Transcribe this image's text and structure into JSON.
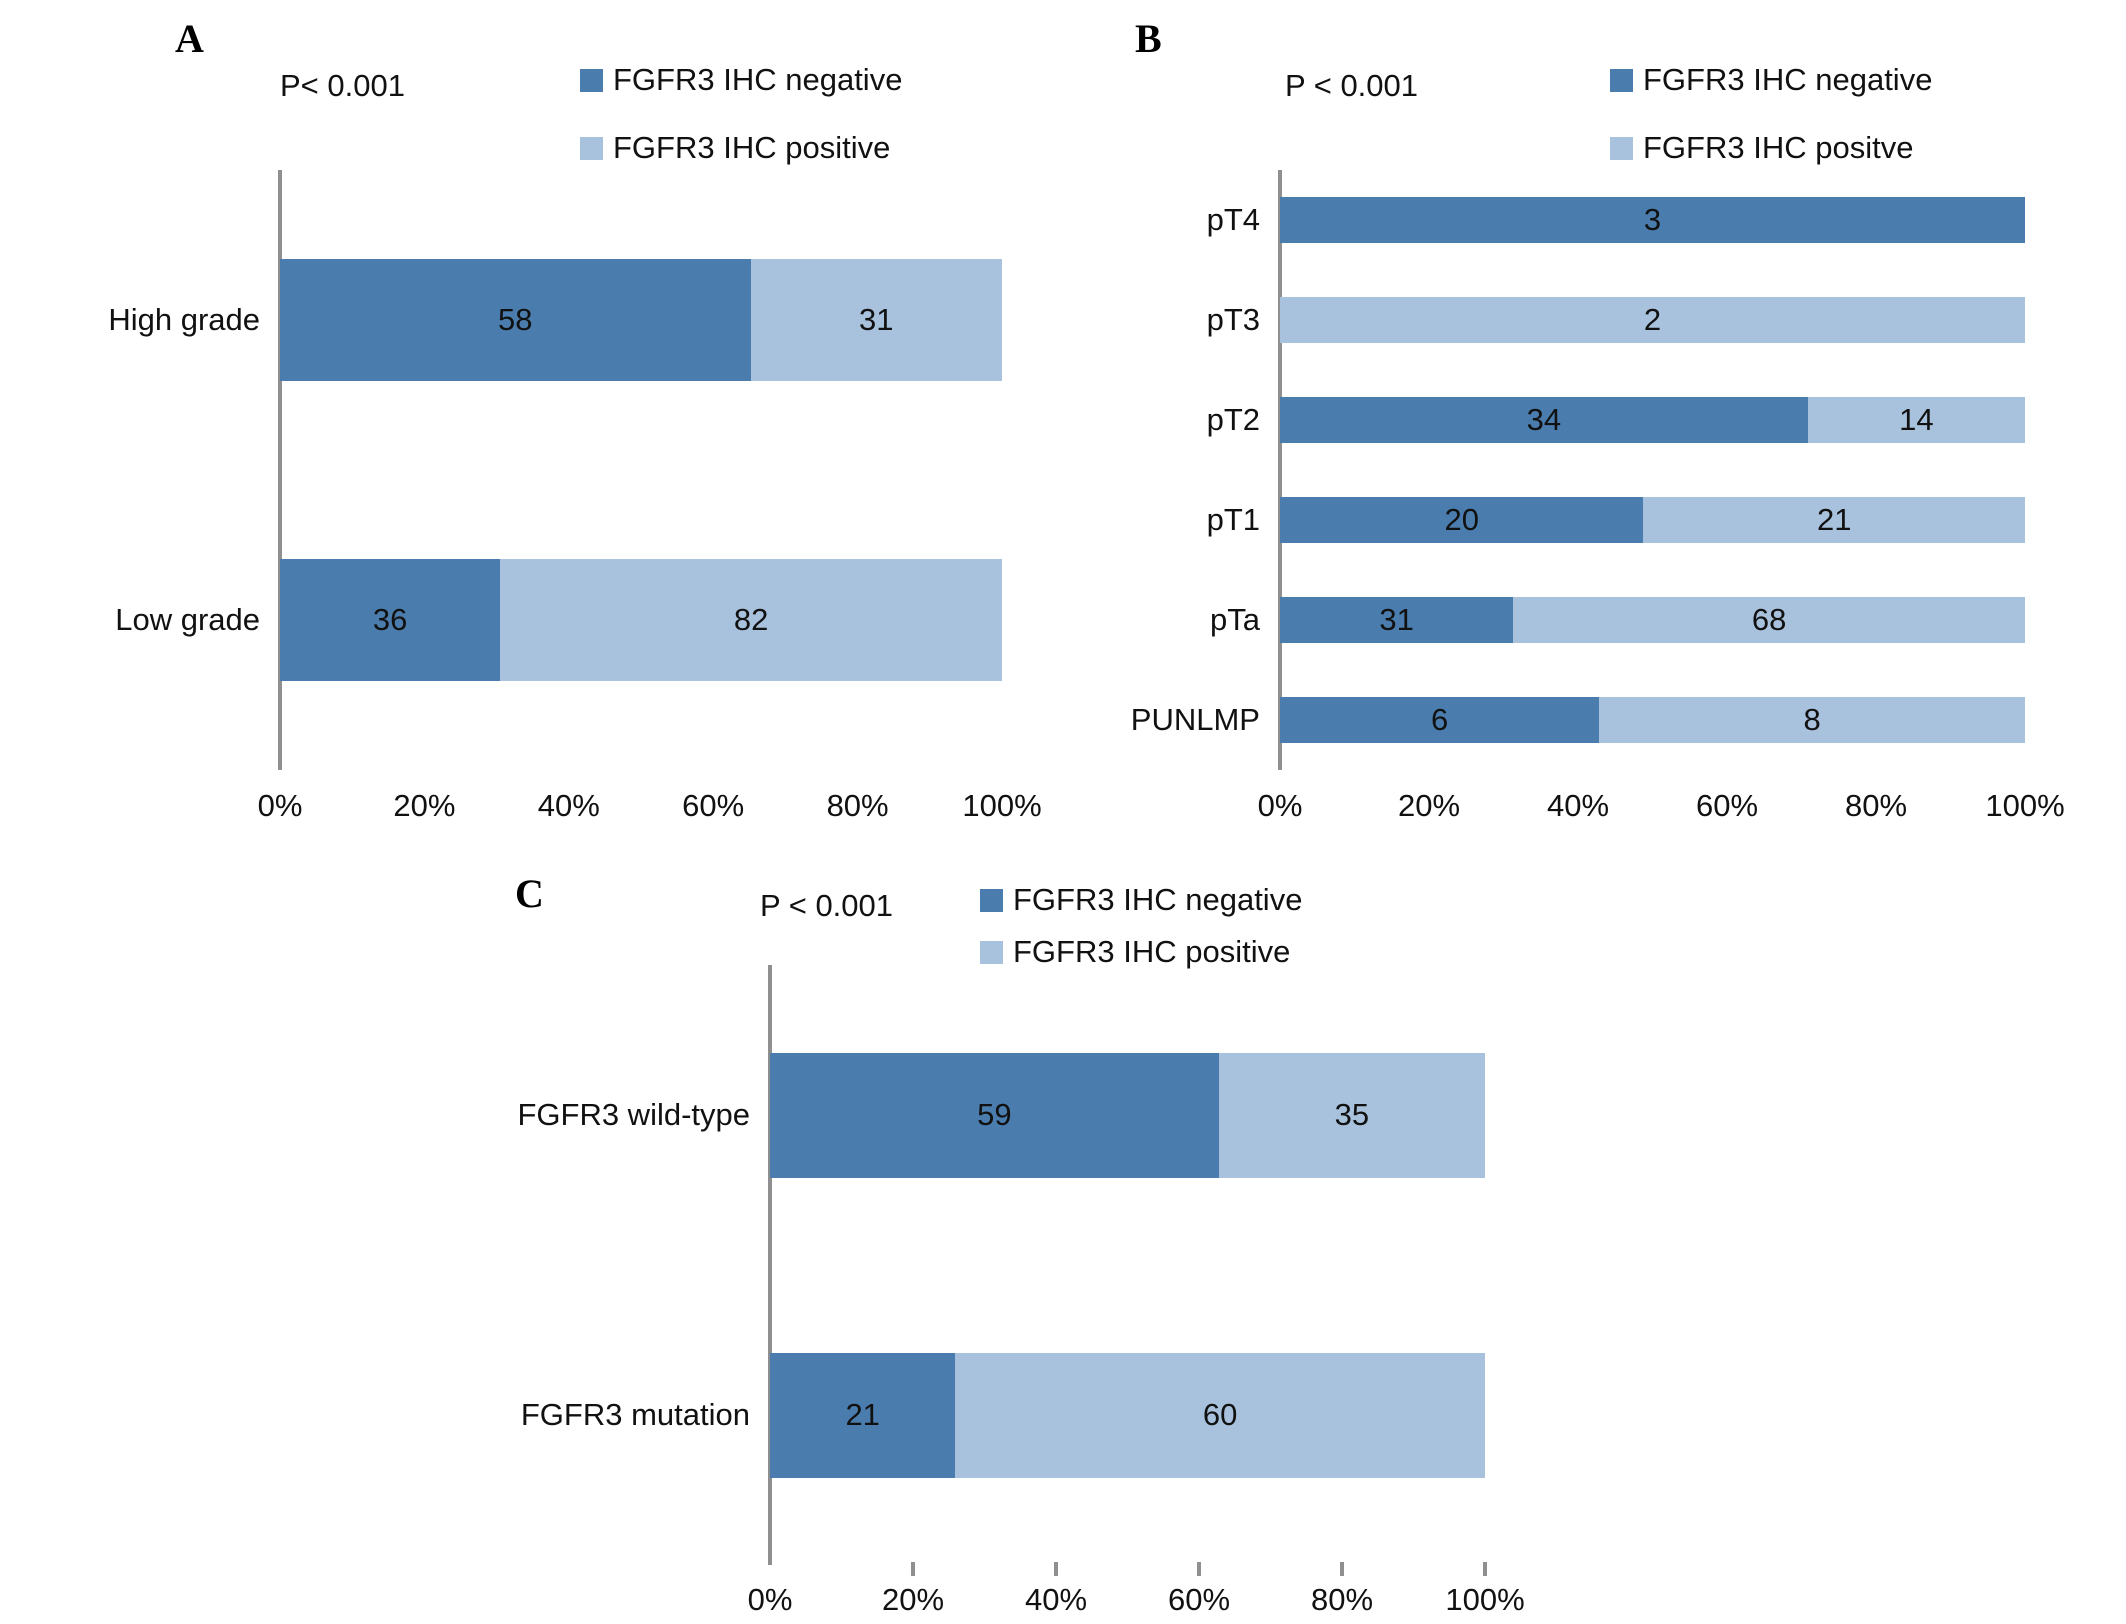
{
  "colors": {
    "negative": "#4a7dad",
    "positive": "#a8c1dc",
    "axis": "#8f8f8f",
    "text": "#111111",
    "background": "#ffffff"
  },
  "chart_data": [
    {
      "panel_label": "A",
      "type": "bar",
      "orientation": "horizontal",
      "stacked": true,
      "normalized_to_percent": true,
      "p_value": "P< 0.001",
      "legend": [
        {
          "label": "FGFR3 IHC negative",
          "color": "#4a7dad"
        },
        {
          "label": "FGFR3 IHC positive",
          "color": "#a8c1dc"
        }
      ],
      "categories": [
        "High grade",
        "Low grade"
      ],
      "series": [
        {
          "name": "FGFR3 IHC negative",
          "values": [
            58,
            36
          ]
        },
        {
          "name": "FGFR3 IHC positive",
          "values": [
            31,
            82
          ]
        }
      ],
      "x_ticks": [
        "0%",
        "20%",
        "40%",
        "60%",
        "80%",
        "100%"
      ],
      "xlim": [
        0,
        100
      ],
      "grid": false,
      "legend_position": "top"
    },
    {
      "panel_label": "B",
      "type": "bar",
      "orientation": "horizontal",
      "stacked": true,
      "normalized_to_percent": true,
      "p_value": "P < 0.001",
      "legend": [
        {
          "label": "FGFR3 IHC negative",
          "color": "#4a7dad"
        },
        {
          "label": "FGFR3 IHC positve",
          "color": "#a8c1dc"
        }
      ],
      "categories": [
        "pT4",
        "pT3",
        "pT2",
        "pT1",
        "pTa",
        "PUNLMP"
      ],
      "series": [
        {
          "name": "FGFR3 IHC negative",
          "values": [
            3,
            0,
            34,
            20,
            31,
            6
          ]
        },
        {
          "name": "FGFR3 IHC positve",
          "values": [
            0,
            2,
            14,
            21,
            68,
            8
          ]
        }
      ],
      "x_ticks": [
        "0%",
        "20%",
        "40%",
        "60%",
        "80%",
        "100%"
      ],
      "xlim": [
        0,
        100
      ],
      "grid": false,
      "legend_position": "top"
    },
    {
      "panel_label": "C",
      "type": "bar",
      "orientation": "horizontal",
      "stacked": true,
      "normalized_to_percent": true,
      "p_value": "P < 0.001",
      "legend": [
        {
          "label": "FGFR3 IHC negative",
          "color": "#4a7dad"
        },
        {
          "label": "FGFR3 IHC positive",
          "color": "#a8c1dc"
        }
      ],
      "categories": [
        "FGFR3 wild-type",
        "FGFR3 mutation"
      ],
      "series": [
        {
          "name": "FGFR3 IHC negative",
          "values": [
            59,
            21
          ]
        },
        {
          "name": "FGFR3 IHC positive",
          "values": [
            35,
            60
          ]
        }
      ],
      "x_ticks": [
        "0%",
        "20%",
        "40%",
        "60%",
        "80%",
        "100%"
      ],
      "xlim": [
        0,
        100
      ],
      "grid": false,
      "legend_position": "top"
    }
  ]
}
